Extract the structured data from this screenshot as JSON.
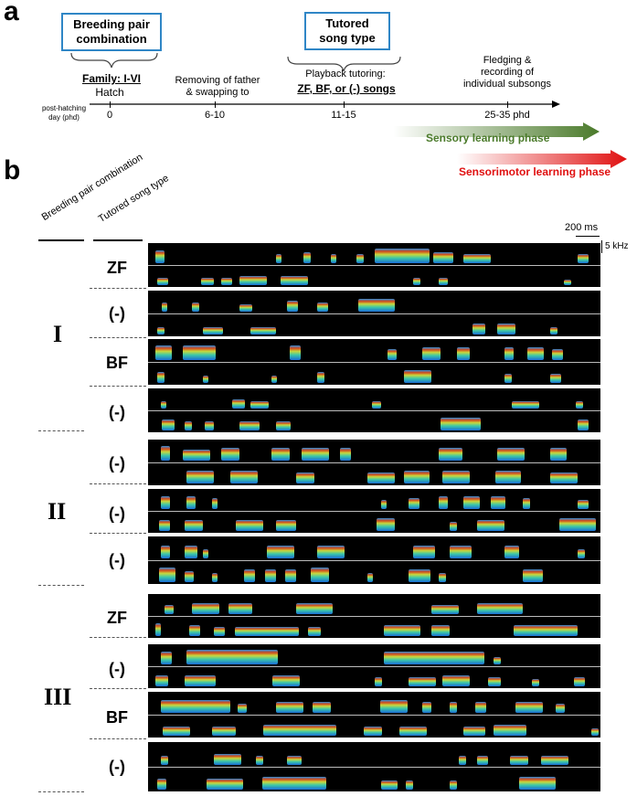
{
  "panel_a": {
    "letter": "a",
    "breeding_box": "Breeding pair combination",
    "tutored_box": "Tutored song type",
    "family_label": "Family: I-VI",
    "hatch_label": "Hatch",
    "removal_label": "Removing of father & swapping to",
    "playback_label": "Playback tutoring:",
    "songs_label": "ZF, BF, or (-) songs",
    "fledging_label": "Fledging & recording of individual subsongs",
    "axis_label": "post-hatching day (phd)",
    "ticks": [
      "0",
      "6-10",
      "11-15",
      "25-35 phd"
    ],
    "sensory_label": "Sensory learning phase",
    "sensorimotor_label": "Sensorimotor learning phase",
    "colors": {
      "box_border": "#2f86c6",
      "sensory": "#4a7a2a",
      "sensorimotor": "#e01010"
    }
  },
  "panel_b": {
    "letter": "b",
    "header_breeding": "Breeding pair combination",
    "header_tutored": "Tutored song type",
    "scale_time": "200 ms",
    "scale_freq": "5 kHz",
    "groups": [
      {
        "label": "I",
        "songs": [
          "ZF",
          "(-)",
          "BF",
          "(-)"
        ]
      },
      {
        "label": "II",
        "songs": [
          "(-)",
          "(-)",
          "(-)"
        ]
      },
      {
        "label": "III",
        "songs": [
          "ZF",
          "(-)",
          "BF",
          "(-)"
        ]
      }
    ]
  }
}
